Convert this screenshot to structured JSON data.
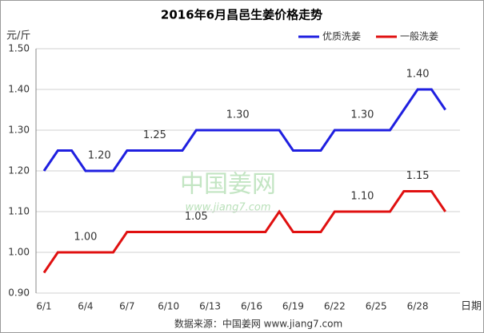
{
  "chart_data": {
    "type": "line",
    "title": "2016年6月昌邑生姜价格走势",
    "y_label": "元/斤",
    "x_label": "日期",
    "source": "数据来源：中国姜网 www.jiang7.com",
    "watermark": [
      "中国姜网",
      "www.jiang7.com"
    ],
    "categories": [
      "6/1",
      null,
      null,
      "6/4",
      null,
      null,
      "6/7",
      null,
      null,
      "6/10",
      null,
      null,
      "6/13",
      null,
      null,
      "6/16",
      null,
      null,
      "6/19",
      null,
      null,
      "6/22",
      null,
      null,
      "6/25",
      null,
      null,
      "6/28",
      null,
      null
    ],
    "series": [
      {
        "name": "优质洗姜",
        "color": "#1f1fe0",
        "values": [
          1.2,
          1.25,
          1.25,
          1.2,
          1.2,
          1.2,
          1.25,
          1.25,
          1.25,
          1.25,
          1.25,
          1.3,
          1.3,
          1.3,
          1.3,
          1.3,
          1.3,
          1.3,
          1.25,
          1.25,
          1.25,
          1.3,
          1.3,
          1.3,
          1.3,
          1.3,
          1.35,
          1.4,
          1.4,
          1.35
        ],
        "value_labels": [
          null,
          null,
          null,
          null,
          "1.20",
          null,
          null,
          null,
          "1.25",
          null,
          null,
          null,
          null,
          null,
          "1.30",
          null,
          null,
          null,
          null,
          null,
          null,
          null,
          null,
          "1.30",
          null,
          null,
          null,
          "1.40",
          null,
          null
        ]
      },
      {
        "name": "一般洗姜",
        "color": "#e01010",
        "values": [
          0.95,
          1.0,
          1.0,
          1.0,
          1.0,
          1.0,
          1.05,
          1.05,
          1.05,
          1.05,
          1.05,
          1.05,
          1.05,
          1.05,
          1.05,
          1.05,
          1.05,
          1.1,
          1.05,
          1.05,
          1.05,
          1.1,
          1.1,
          1.1,
          1.1,
          1.1,
          1.15,
          1.15,
          1.15,
          1.1
        ],
        "value_labels": [
          null,
          null,
          null,
          "1.00",
          null,
          null,
          null,
          null,
          null,
          null,
          null,
          "1.05",
          null,
          null,
          null,
          null,
          null,
          null,
          null,
          null,
          null,
          null,
          null,
          "1.10",
          null,
          null,
          null,
          "1.15",
          null,
          null
        ]
      }
    ],
    "ylim": [
      0.9,
      1.5
    ],
    "yticks": [
      {
        "value": 0.9,
        "label": "0.90"
      },
      {
        "value": 1.0,
        "label": "1.00"
      },
      {
        "value": 1.1,
        "label": "1.10"
      },
      {
        "value": 1.2,
        "label": "1.20"
      },
      {
        "value": 1.3,
        "label": "1.30"
      },
      {
        "value": 1.4,
        "label": "1.40"
      },
      {
        "value": 1.5,
        "label": "1.50"
      }
    ],
    "grid": true,
    "legend": "top-right"
  }
}
